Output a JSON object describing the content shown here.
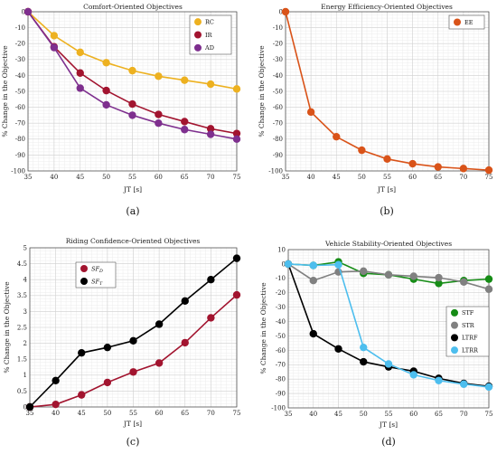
{
  "chart_data": [
    {
      "type": "line",
      "title": "Comfort-Oriented Objectives",
      "xlabel": "JT [s]",
      "ylabel": "% Change in the Objective",
      "caption": "(a)",
      "x": [
        35,
        40,
        45,
        50,
        55,
        60,
        65,
        70,
        75
      ],
      "xlim": [
        35,
        75
      ],
      "ylim": [
        -100,
        0
      ],
      "xticks": [
        "35",
        "40",
        "45",
        "50",
        "55",
        "60",
        "65",
        "70",
        "75"
      ],
      "yticks": [
        "0",
        "-10",
        "-20",
        "-30",
        "-40",
        "-50",
        "-60",
        "-70",
        "-80",
        "-90",
        "-100"
      ],
      "grid": true,
      "legend_position": "top-right",
      "series": [
        {
          "name": "RC",
          "color": "#EDB120",
          "values": [
            0,
            -15,
            -25.5,
            -32,
            -37,
            -40.5,
            -43,
            -45.5,
            -48.5
          ]
        },
        {
          "name": "IR",
          "color": "#A2142F",
          "values": [
            0,
            -22,
            -38.5,
            -49.5,
            -58,
            -64.5,
            -69,
            -73.5,
            -76.5
          ]
        },
        {
          "name": "AD",
          "color": "#7E2F8E",
          "values": [
            0,
            -22.5,
            -48,
            -58.5,
            -65,
            -70,
            -74,
            -77,
            -80
          ]
        }
      ]
    },
    {
      "type": "line",
      "title": "Energy Efficiency-Oriented Objectives",
      "xlabel": "JT [s]",
      "ylabel": "% Change in the Objective",
      "caption": "(b)",
      "x": [
        35,
        40,
        45,
        50,
        55,
        60,
        65,
        70,
        75
      ],
      "xlim": [
        35,
        75
      ],
      "ylim": [
        -100,
        0
      ],
      "xticks": [
        "35",
        "40",
        "45",
        "50",
        "55",
        "60",
        "65",
        "70",
        "75"
      ],
      "yticks": [
        "0",
        "-10",
        "-20",
        "-30",
        "-40",
        "-50",
        "-60",
        "-70",
        "-80",
        "-90",
        "-100"
      ],
      "grid": true,
      "legend_position": "top-right",
      "series": [
        {
          "name": "EE",
          "color": "#D95319",
          "values": [
            0,
            -63,
            -78.5,
            -87,
            -92.5,
            -95.5,
            -97.5,
            -98.5,
            -99.5
          ]
        }
      ]
    },
    {
      "type": "line",
      "title": "Riding Confidence-Oriented Objectives",
      "xlabel": "JT [s]",
      "ylabel": "% Change in the Objective",
      "caption": "(c)",
      "x": [
        35,
        40,
        45,
        50,
        55,
        60,
        65,
        70,
        75
      ],
      "xlim": [
        35,
        75
      ],
      "ylim": [
        0,
        5
      ],
      "xticks": [
        "35",
        "40",
        "45",
        "50",
        "55",
        "60",
        "65",
        "70",
        "75"
      ],
      "yticks": [
        "0",
        "0.5",
        "1",
        "1.5",
        "2",
        "2.5",
        "3",
        "3.5",
        "4",
        "4.5",
        "5"
      ],
      "grid": true,
      "legend_position": "top-left",
      "series": [
        {
          "name": "SFD",
          "label_main": "SF",
          "label_sub": "D",
          "color": "#A2142F",
          "values": [
            0,
            0.08,
            0.38,
            0.77,
            1.1,
            1.38,
            2.02,
            2.8,
            3.52
          ]
        },
        {
          "name": "SFT",
          "label_main": "SF",
          "label_sub": "T",
          "color": "#000000",
          "values": [
            0,
            0.83,
            1.7,
            1.87,
            2.08,
            2.6,
            3.33,
            4.0,
            4.67
          ]
        }
      ]
    },
    {
      "type": "line",
      "title": "Vehicle Stability-Oriented Objectives",
      "xlabel": "JT [s]",
      "ylabel": "% Change in the Objective",
      "caption": "(d)",
      "x": [
        35,
        40,
        45,
        50,
        55,
        60,
        65,
        70,
        75
      ],
      "xlim": [
        35,
        75
      ],
      "ylim": [
        -100,
        10
      ],
      "xticks": [
        "35",
        "40",
        "45",
        "50",
        "55",
        "60",
        "65",
        "70",
        "75"
      ],
      "yticks": [
        "10",
        "0",
        "-10",
        "-20",
        "-30",
        "-40",
        "-50",
        "-60",
        "-70",
        "-80",
        "-90",
        "-100"
      ],
      "grid": true,
      "legend_position": "right",
      "series": [
        {
          "name": "STF",
          "color": "#168C16",
          "values": [
            0,
            -1,
            1.5,
            -6.5,
            -7.5,
            -10.5,
            -13.5,
            -11.5,
            -10.5
          ]
        },
        {
          "name": "STR",
          "color": "#808080",
          "values": [
            0,
            -11.5,
            -5.5,
            -5,
            -7.5,
            -8.5,
            -9.5,
            -12.5,
            -17.5
          ]
        },
        {
          "name": "LTRF",
          "color": "#000000",
          "values": [
            0,
            -48.5,
            -59,
            -68,
            -71.5,
            -74.5,
            -79.5,
            -83,
            -85
          ]
        },
        {
          "name": "LTRR",
          "color": "#4DBEEE",
          "values": [
            0,
            -1,
            -0.5,
            -58,
            -69.5,
            -77,
            -81,
            -83.5,
            -85.5
          ]
        }
      ]
    }
  ]
}
